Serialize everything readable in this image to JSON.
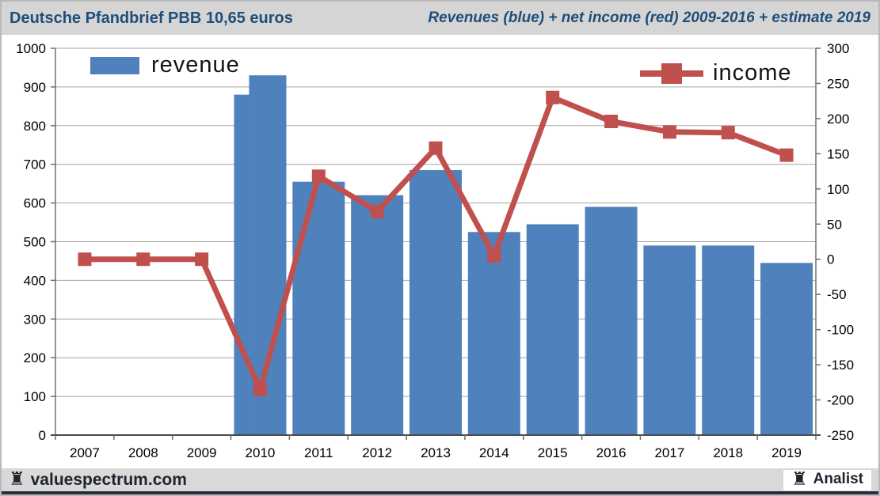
{
  "header": {
    "title_left": "Deutsche Pfandbrief PBB 10,65 euros",
    "title_right": "Revenues (blue) + net income (red) 2009-2016 + estimate 2019"
  },
  "footer": {
    "brand": "valuespectrum.com",
    "badge": "Analist",
    "rook_icon": "♜"
  },
  "colors": {
    "bar_blue": "#4f81bd",
    "line_red": "#c0504d",
    "title_navy": "#1f4e79",
    "gridline": "#a3a3a3",
    "axis": "#6e6e6e",
    "header_bg": "#d5d5d5",
    "footer_bg": "#d9d9d9",
    "dark_text": "#20242e"
  },
  "chart_data": {
    "type": "bar+line combo",
    "categories": [
      "2007",
      "2008",
      "2009",
      "2010",
      "2011",
      "2012",
      "2013",
      "2014",
      "2015",
      "2016",
      "2017",
      "2018",
      "2019"
    ],
    "series": [
      {
        "name": "revenue",
        "type": "bar",
        "axis": "left",
        "color": "#4f81bd",
        "values": [
          null,
          null,
          null,
          930,
          655,
          620,
          685,
          525,
          545,
          590,
          490,
          490,
          445
        ]
      },
      {
        "name": "income",
        "type": "line",
        "axis": "right",
        "color": "#c0504d",
        "marker": "square",
        "values": [
          0,
          0,
          0,
          -185,
          118,
          68,
          158,
          5,
          230,
          196,
          181,
          180,
          148
        ]
      }
    ],
    "revenue_2010_secondary_step": 880,
    "left_axis": {
      "min": 0,
      "max": 1000,
      "step": 100,
      "ticks": [
        "0",
        "100",
        "200",
        "300",
        "400",
        "500",
        "600",
        "700",
        "800",
        "900",
        "1000"
      ]
    },
    "right_axis": {
      "min": -250,
      "max": 300,
      "step": 50,
      "ticks": [
        "-250",
        "-200",
        "-150",
        "-100",
        "-50",
        "0",
        "50",
        "100",
        "150",
        "200",
        "250",
        "300"
      ]
    },
    "grid": true,
    "legend_position": "top-inside"
  }
}
